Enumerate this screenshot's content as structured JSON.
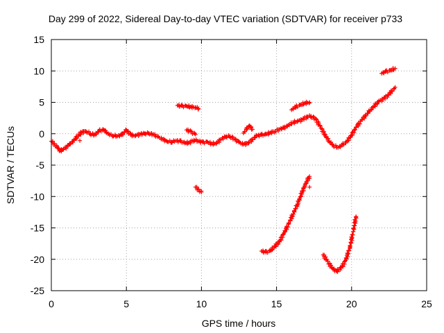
{
  "chart_data": {
    "type": "scatter",
    "title": "Day 299 of 2022, Sidereal Day-to-day VTEC variation (SDTVAR) for receiver p733",
    "xlabel": "GPS time / hours",
    "ylabel": "SDTVAR / TECUs",
    "xlim": [
      0,
      25
    ],
    "ylim": [
      -25,
      15
    ],
    "xticks": [
      "0",
      "5",
      "10",
      "15",
      "20",
      "25"
    ],
    "yticks": [
      "15",
      "10",
      "5",
      "0",
      "-5",
      "-10",
      "-15",
      "-20",
      "-25"
    ],
    "grid": true,
    "marker": "+",
    "marker_color": "#ff0000",
    "series": [
      {
        "segments": [
          [
            [
              0.0,
              -1.2
            ],
            [
              0.2,
              -1.6
            ],
            [
              0.4,
              -2.2
            ],
            [
              0.6,
              -2.7
            ],
            [
              0.8,
              -2.5
            ],
            [
              1.0,
              -2.1
            ],
            [
              1.2,
              -1.7
            ],
            [
              1.4,
              -1.3
            ],
            [
              1.6,
              -0.8
            ],
            [
              1.8,
              -0.3
            ],
            [
              2.0,
              0.2
            ],
            [
              2.3,
              0.4
            ],
            [
              2.6,
              0.0
            ],
            [
              2.9,
              -0.2
            ],
            [
              3.2,
              0.5
            ],
            [
              3.5,
              0.6
            ],
            [
              3.8,
              0.0
            ],
            [
              4.1,
              -0.3
            ],
            [
              4.4,
              -0.4
            ],
            [
              4.7,
              -0.2
            ],
            [
              5.0,
              0.6
            ],
            [
              5.3,
              -0.2
            ],
            [
              5.6,
              -0.3
            ],
            [
              5.9,
              -0.1
            ],
            [
              6.2,
              0.0
            ],
            [
              6.5,
              0.1
            ],
            [
              6.8,
              -0.1
            ],
            [
              7.1,
              -0.5
            ],
            [
              7.4,
              -0.9
            ],
            [
              7.7,
              -1.2
            ],
            [
              8.0,
              -1.3
            ],
            [
              8.3,
              -1.1
            ],
            [
              8.6,
              -1.2
            ],
            [
              8.9,
              -1.5
            ],
            [
              9.2,
              -1.4
            ],
            [
              9.5,
              -1.0
            ],
            [
              9.8,
              -1.2
            ],
            [
              10.1,
              -1.4
            ],
            [
              10.4,
              -1.3
            ],
            [
              10.7,
              -1.6
            ],
            [
              11.0,
              -1.5
            ],
            [
              11.3,
              -0.9
            ],
            [
              11.6,
              -0.5
            ],
            [
              11.9,
              -0.4
            ],
            [
              12.2,
              -0.8
            ],
            [
              12.5,
              -1.4
            ],
            [
              12.8,
              -1.7
            ],
            [
              13.1,
              -1.5
            ],
            [
              13.4,
              -0.9
            ],
            [
              13.7,
              -0.3
            ],
            [
              14.0,
              -0.2
            ],
            [
              14.3,
              -0.1
            ],
            [
              14.6,
              0.2
            ],
            [
              14.9,
              0.4
            ],
            [
              15.2,
              0.7
            ],
            [
              15.5,
              0.9
            ],
            [
              15.8,
              1.4
            ],
            [
              16.1,
              1.8
            ],
            [
              16.4,
              2.0
            ],
            [
              16.7,
              2.2
            ],
            [
              17.0,
              2.7
            ],
            [
              17.3,
              2.8
            ],
            [
              17.6,
              2.4
            ],
            [
              17.9,
              1.2
            ],
            [
              18.2,
              -0.1
            ],
            [
              18.5,
              -1.2
            ],
            [
              18.8,
              -1.9
            ],
            [
              19.1,
              -2.2
            ],
            [
              19.4,
              -1.8
            ],
            [
              19.7,
              -1.2
            ],
            [
              20.0,
              -0.2
            ],
            [
              20.3,
              1.0
            ],
            [
              20.6,
              2.0
            ],
            [
              20.9,
              2.8
            ],
            [
              21.2,
              3.6
            ],
            [
              21.5,
              4.4
            ],
            [
              21.8,
              5.1
            ],
            [
              22.1,
              5.5
            ],
            [
              22.4,
              6.1
            ],
            [
              22.7,
              6.8
            ],
            [
              22.9,
              7.4
            ]
          ],
          [
            [
              8.4,
              4.5
            ],
            [
              8.7,
              4.4
            ],
            [
              9.0,
              4.4
            ],
            [
              9.3,
              4.3
            ],
            [
              9.6,
              4.2
            ],
            [
              9.8,
              4.0
            ]
          ],
          [
            [
              9.0,
              0.6
            ],
            [
              9.3,
              0.3
            ],
            [
              9.6,
              -0.1
            ]
          ],
          [
            [
              12.8,
              0.1
            ],
            [
              13.0,
              0.7
            ],
            [
              13.2,
              1.3
            ],
            [
              13.4,
              0.7
            ]
          ],
          [
            [
              16.0,
              3.8
            ],
            [
              16.3,
              4.3
            ],
            [
              16.6,
              4.6
            ],
            [
              16.9,
              4.9
            ],
            [
              17.2,
              5.0
            ]
          ],
          [
            [
              22.0,
              9.6
            ],
            [
              22.3,
              9.9
            ],
            [
              22.6,
              10.1
            ],
            [
              22.9,
              10.4
            ]
          ],
          [
            [
              9.6,
              -8.5
            ],
            [
              9.8,
              -8.9
            ],
            [
              10.0,
              -9.3
            ]
          ],
          [
            [
              14.0,
              -18.7
            ],
            [
              14.3,
              -18.9
            ],
            [
              14.6,
              -18.6
            ],
            [
              14.9,
              -17.9
            ],
            [
              15.2,
              -17.2
            ],
            [
              15.5,
              -15.8
            ],
            [
              15.8,
              -14.4
            ],
            [
              16.1,
              -12.8
            ],
            [
              16.4,
              -11.2
            ],
            [
              16.7,
              -9.4
            ],
            [
              17.0,
              -7.6
            ],
            [
              17.2,
              -6.8
            ]
          ],
          [
            [
              18.1,
              -19.3
            ],
            [
              18.4,
              -20.3
            ],
            [
              18.7,
              -21.4
            ],
            [
              19.0,
              -21.9
            ],
            [
              19.3,
              -21.4
            ],
            [
              19.6,
              -20.2
            ],
            [
              19.9,
              -18.0
            ],
            [
              20.1,
              -15.6
            ],
            [
              20.3,
              -13.2
            ]
          ],
          [
            [
              1.9,
              -1.1
            ],
            [
              17.2,
              -8.5
            ]
          ]
        ]
      }
    ]
  }
}
